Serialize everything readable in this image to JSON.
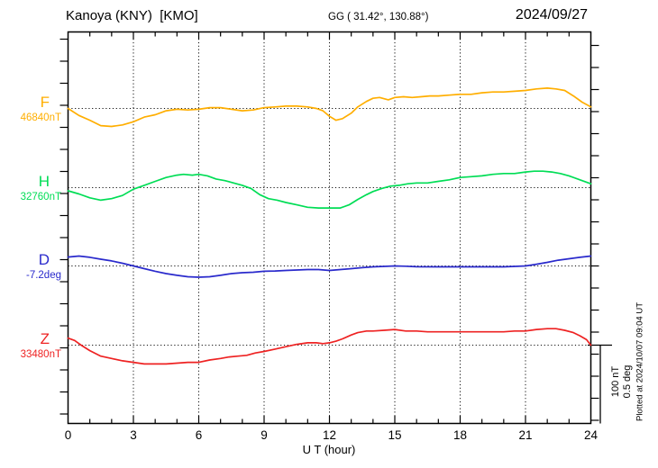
{
  "header": {
    "station_title": "Kanoya (KNY)  [KMO]",
    "coords": "GG ( 31.42°, 130.88°)",
    "date": "2024/09/27"
  },
  "scale_bar": {
    "line1": "100 nT",
    "line2": "0.5 deg"
  },
  "footer_note": "Plotted at 2024/10/07 09:04 UT",
  "chart_data": {
    "type": "line",
    "title": "Kanoya (KNY) [KMO] magnetogram for 2024/09/27",
    "xlabel": "U T (hour)",
    "x_range": [
      0,
      24
    ],
    "x_major_ticks": [
      0,
      3,
      6,
      9,
      12,
      15,
      18,
      21,
      24
    ],
    "x_minor_step_hours": 1,
    "grid": "dotted vertical lines every 3 hours; dotted horizontal baseline per channel",
    "scale_division": {
      "nT": 100,
      "deg": 0.5
    },
    "legend_position": "left",
    "series": [
      {
        "name": "F",
        "unit": "nT",
        "baseline_label": "46840nT",
        "baseline_value": 46840,
        "color": "#FFAE00",
        "points": [
          [
            0,
            46840
          ],
          [
            0.5,
            46831
          ],
          [
            1,
            46825
          ],
          [
            1.5,
            46818
          ],
          [
            2,
            46817
          ],
          [
            2.5,
            46819
          ],
          [
            3,
            46823
          ],
          [
            3.5,
            46829
          ],
          [
            4,
            46832
          ],
          [
            4.5,
            46837
          ],
          [
            5,
            46839
          ],
          [
            5.5,
            46838
          ],
          [
            6,
            46839
          ],
          [
            6.5,
            46841
          ],
          [
            7,
            46841
          ],
          [
            7.5,
            46839
          ],
          [
            8,
            46837
          ],
          [
            8.5,
            46838
          ],
          [
            9,
            46841
          ],
          [
            9.5,
            46842
          ],
          [
            10,
            46843
          ],
          [
            10.5,
            46843
          ],
          [
            11,
            46842
          ],
          [
            11.4,
            46840
          ],
          [
            11.7,
            46837
          ],
          [
            12,
            46830
          ],
          [
            12.3,
            46825
          ],
          [
            12.6,
            46827
          ],
          [
            13,
            46834
          ],
          [
            13.3,
            46842
          ],
          [
            13.7,
            46849
          ],
          [
            14,
            46853
          ],
          [
            14.3,
            46854
          ],
          [
            14.7,
            46851
          ],
          [
            15,
            46854
          ],
          [
            15.4,
            46855
          ],
          [
            15.8,
            46854
          ],
          [
            16.2,
            46855
          ],
          [
            16.6,
            46856
          ],
          [
            17,
            46856
          ],
          [
            17.5,
            46857
          ],
          [
            18,
            46858
          ],
          [
            18.5,
            46858
          ],
          [
            19,
            46860
          ],
          [
            19.5,
            46861
          ],
          [
            20,
            46861
          ],
          [
            20.5,
            46862
          ],
          [
            21,
            46863
          ],
          [
            21.5,
            46865
          ],
          [
            22,
            46866
          ],
          [
            22.4,
            46865
          ],
          [
            22.8,
            46863
          ],
          [
            23.2,
            46856
          ],
          [
            23.6,
            46848
          ],
          [
            24,
            46842
          ]
        ]
      },
      {
        "name": "H",
        "unit": "nT",
        "baseline_label": "32760nT",
        "baseline_value": 32760,
        "color": "#00DD55",
        "points": [
          [
            0,
            32756
          ],
          [
            0.5,
            32752
          ],
          [
            1,
            32747
          ],
          [
            1.5,
            32744
          ],
          [
            2,
            32746
          ],
          [
            2.5,
            32750
          ],
          [
            3,
            32758
          ],
          [
            3.5,
            32763
          ],
          [
            4,
            32768
          ],
          [
            4.5,
            32773
          ],
          [
            5,
            32776
          ],
          [
            5.3,
            32777
          ],
          [
            5.7,
            32776
          ],
          [
            6,
            32777
          ],
          [
            6.4,
            32775
          ],
          [
            6.8,
            32771
          ],
          [
            7.2,
            32769
          ],
          [
            7.6,
            32766
          ],
          [
            8,
            32763
          ],
          [
            8.4,
            32759
          ],
          [
            8.8,
            32751
          ],
          [
            9.2,
            32746
          ],
          [
            9.6,
            32744
          ],
          [
            10,
            32741
          ],
          [
            10.5,
            32738
          ],
          [
            11,
            32735
          ],
          [
            11.5,
            32734
          ],
          [
            12,
            32734
          ],
          [
            12.5,
            32734
          ],
          [
            12.9,
            32738
          ],
          [
            13.3,
            32745
          ],
          [
            13.7,
            32751
          ],
          [
            14,
            32755
          ],
          [
            14.4,
            32759
          ],
          [
            14.8,
            32762
          ],
          [
            15.2,
            32763
          ],
          [
            15.6,
            32765
          ],
          [
            16,
            32766
          ],
          [
            16.5,
            32766
          ],
          [
            17,
            32768
          ],
          [
            17.5,
            32770
          ],
          [
            18,
            32773
          ],
          [
            18.5,
            32774
          ],
          [
            19,
            32775
          ],
          [
            19.5,
            32777
          ],
          [
            20,
            32778
          ],
          [
            20.5,
            32778
          ],
          [
            21,
            32780
          ],
          [
            21.4,
            32781
          ],
          [
            21.8,
            32781
          ],
          [
            22.2,
            32780
          ],
          [
            22.6,
            32778
          ],
          [
            23,
            32775
          ],
          [
            23.5,
            32770
          ],
          [
            24,
            32765
          ]
        ]
      },
      {
        "name": "D",
        "unit": "deg",
        "baseline_label": "-7.2deg",
        "baseline_value": -7.2,
        "color": "#2A2ACC",
        "points": [
          [
            0,
            -7.143
          ],
          [
            0.5,
            -7.137
          ],
          [
            1,
            -7.145
          ],
          [
            1.5,
            -7.157
          ],
          [
            2,
            -7.168
          ],
          [
            2.5,
            -7.183
          ],
          [
            3,
            -7.2
          ],
          [
            3.5,
            -7.217
          ],
          [
            4,
            -7.234
          ],
          [
            4.5,
            -7.249
          ],
          [
            5,
            -7.26
          ],
          [
            5.5,
            -7.269
          ],
          [
            6,
            -7.272
          ],
          [
            6.5,
            -7.269
          ],
          [
            7,
            -7.26
          ],
          [
            7.5,
            -7.249
          ],
          [
            8,
            -7.243
          ],
          [
            8.5,
            -7.24
          ],
          [
            9,
            -7.234
          ],
          [
            9.5,
            -7.232
          ],
          [
            10,
            -7.229
          ],
          [
            10.5,
            -7.226
          ],
          [
            11,
            -7.223
          ],
          [
            11.5,
            -7.223
          ],
          [
            12,
            -7.229
          ],
          [
            12.5,
            -7.223
          ],
          [
            13,
            -7.217
          ],
          [
            13.5,
            -7.211
          ],
          [
            14,
            -7.206
          ],
          [
            14.5,
            -7.203
          ],
          [
            15,
            -7.2
          ],
          [
            15.5,
            -7.202
          ],
          [
            16,
            -7.205
          ],
          [
            17,
            -7.206
          ],
          [
            18,
            -7.206
          ],
          [
            19,
            -7.206
          ],
          [
            20,
            -7.206
          ],
          [
            20.5,
            -7.203
          ],
          [
            21,
            -7.2
          ],
          [
            21.5,
            -7.189
          ],
          [
            22,
            -7.177
          ],
          [
            22.5,
            -7.163
          ],
          [
            23,
            -7.154
          ],
          [
            23.5,
            -7.145
          ],
          [
            24,
            -7.137
          ]
        ]
      },
      {
        "name": "Z",
        "unit": "nT",
        "baseline_label": "33480nT",
        "baseline_value": 33480,
        "color": "#EE2222",
        "points": [
          [
            0,
            33489
          ],
          [
            0.3,
            33486
          ],
          [
            0.6,
            33480
          ],
          [
            1,
            33473
          ],
          [
            1.5,
            33466
          ],
          [
            2,
            33463
          ],
          [
            2.5,
            33460
          ],
          [
            3,
            33458
          ],
          [
            3.5,
            33456
          ],
          [
            4,
            33456
          ],
          [
            4.5,
            33456
          ],
          [
            5,
            33457
          ],
          [
            5.5,
            33458
          ],
          [
            6,
            33458
          ],
          [
            6.5,
            33461
          ],
          [
            7,
            33463
          ],
          [
            7.4,
            33465
          ],
          [
            7.8,
            33466
          ],
          [
            8.2,
            33467
          ],
          [
            8.6,
            33470
          ],
          [
            9,
            33472
          ],
          [
            9.5,
            33475
          ],
          [
            10,
            33478
          ],
          [
            10.5,
            33481
          ],
          [
            11,
            33483
          ],
          [
            11.4,
            33483
          ],
          [
            11.7,
            33482
          ],
          [
            12,
            33483
          ],
          [
            12.3,
            33485
          ],
          [
            12.6,
            33488
          ],
          [
            13,
            33493
          ],
          [
            13.3,
            33496
          ],
          [
            13.7,
            33498
          ],
          [
            14,
            33498
          ],
          [
            14.5,
            33499
          ],
          [
            15,
            33500
          ],
          [
            15.5,
            33498
          ],
          [
            16,
            33498
          ],
          [
            16.5,
            33497
          ],
          [
            17,
            33497
          ],
          [
            18,
            33497
          ],
          [
            19,
            33497
          ],
          [
            20,
            33497
          ],
          [
            20.5,
            33498
          ],
          [
            21,
            33498
          ],
          [
            21.5,
            33500
          ],
          [
            22,
            33501
          ],
          [
            22.4,
            33501
          ],
          [
            22.8,
            33499
          ],
          [
            23.2,
            33496
          ],
          [
            23.5,
            33492
          ],
          [
            23.8,
            33487
          ],
          [
            24,
            33480
          ]
        ]
      }
    ]
  }
}
